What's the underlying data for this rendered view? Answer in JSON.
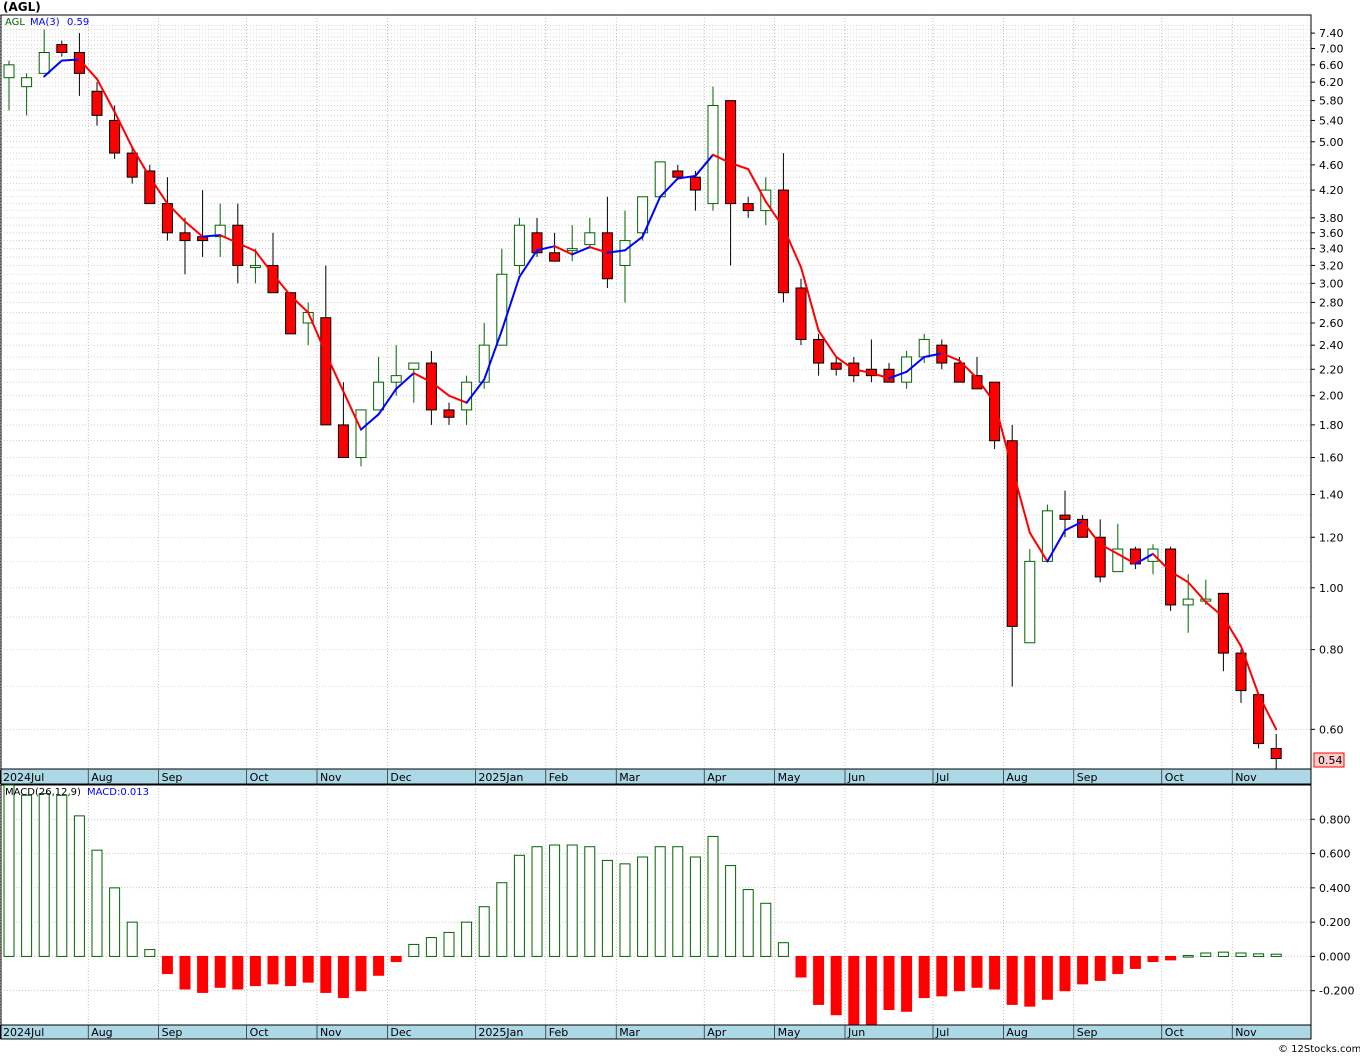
{
  "title": "(AGL)",
  "watermark": "© 12Stocks.com",
  "colors": {
    "up": "#006400",
    "down": "#ff0000",
    "ma_rising": "#0000ff",
    "ma_falling": "#ff0000",
    "axis_band": "#add8e6",
    "last_price_bg": "#ffcccc"
  },
  "chart_data": [
    {
      "type": "candlestick",
      "name": "price",
      "y_scale": "log",
      "ylim": [
        0.52,
        7.9
      ],
      "legend": {
        "symbol": "AGL",
        "ma_label": "MA(3)",
        "ma_value": "0.59"
      },
      "last_price_label": "0.54",
      "y_ticks": [
        "7.40",
        "7.00",
        "6.60",
        "6.20",
        "5.80",
        "5.40",
        "5.00",
        "4.60",
        "4.20",
        "3.80",
        "3.60",
        "3.40",
        "3.20",
        "3.00",
        "2.80",
        "2.60",
        "2.40",
        "2.20",
        "2.00",
        "1.80",
        "1.60",
        "1.40",
        "1.20",
        "1.00",
        "0.80",
        "0.60"
      ],
      "x_labels": [
        {
          "index": 0,
          "text": "2024Jul"
        },
        {
          "index": 5,
          "text": "Aug"
        },
        {
          "index": 9,
          "text": "Sep"
        },
        {
          "index": 14,
          "text": "Oct"
        },
        {
          "index": 18,
          "text": "Nov"
        },
        {
          "index": 22,
          "text": "Dec"
        },
        {
          "index": 27,
          "text": "2025Jan"
        },
        {
          "index": 31,
          "text": "Feb"
        },
        {
          "index": 35,
          "text": "Mar"
        },
        {
          "index": 40,
          "text": "Apr"
        },
        {
          "index": 44,
          "text": "May"
        },
        {
          "index": 48,
          "text": "Jun"
        },
        {
          "index": 53,
          "text": "Jul"
        },
        {
          "index": 57,
          "text": "Aug"
        },
        {
          "index": 61,
          "text": "Sep"
        },
        {
          "index": 66,
          "text": "Oct"
        },
        {
          "index": 70,
          "text": "Nov"
        }
      ],
      "candles": [
        {
          "o": 6.3,
          "h": 6.7,
          "l": 5.6,
          "c": 6.6
        },
        {
          "o": 6.1,
          "h": 6.4,
          "l": 5.5,
          "c": 6.3
        },
        {
          "o": 6.4,
          "h": 7.5,
          "l": 6.4,
          "c": 6.9
        },
        {
          "o": 7.1,
          "h": 7.2,
          "l": 6.8,
          "c": 6.9
        },
        {
          "o": 6.9,
          "h": 7.4,
          "l": 5.9,
          "c": 6.4
        },
        {
          "o": 6.0,
          "h": 6.2,
          "l": 5.3,
          "c": 5.5
        },
        {
          "o": 5.4,
          "h": 5.7,
          "l": 4.7,
          "c": 4.8
        },
        {
          "o": 4.8,
          "h": 4.9,
          "l": 4.3,
          "c": 4.4
        },
        {
          "o": 4.5,
          "h": 4.6,
          "l": 4.0,
          "c": 4.0
        },
        {
          "o": 4.0,
          "h": 4.4,
          "l": 3.5,
          "c": 3.6
        },
        {
          "o": 3.6,
          "h": 3.8,
          "l": 3.1,
          "c": 3.5
        },
        {
          "o": 3.55,
          "h": 4.2,
          "l": 3.3,
          "c": 3.5
        },
        {
          "o": 3.55,
          "h": 4.0,
          "l": 3.3,
          "c": 3.7
        },
        {
          "o": 3.7,
          "h": 4.0,
          "l": 3.0,
          "c": 3.2
        },
        {
          "o": 3.2,
          "h": 3.4,
          "l": 3.0,
          "c": 3.2
        },
        {
          "o": 3.2,
          "h": 3.6,
          "l": 2.9,
          "c": 2.9
        },
        {
          "o": 2.9,
          "h": 2.9,
          "l": 2.5,
          "c": 2.5
        },
        {
          "o": 2.6,
          "h": 2.8,
          "l": 2.4,
          "c": 2.7
        },
        {
          "o": 2.65,
          "h": 3.2,
          "l": 1.8,
          "c": 1.8
        },
        {
          "o": 1.8,
          "h": 2.1,
          "l": 1.6,
          "c": 1.6
        },
        {
          "o": 1.6,
          "h": 1.9,
          "l": 1.55,
          "c": 1.9
        },
        {
          "o": 1.9,
          "h": 2.3,
          "l": 1.9,
          "c": 2.1
        },
        {
          "o": 2.1,
          "h": 2.4,
          "l": 2.0,
          "c": 2.15
        },
        {
          "o": 2.2,
          "h": 2.25,
          "l": 1.95,
          "c": 2.25
        },
        {
          "o": 2.25,
          "h": 2.35,
          "l": 1.8,
          "c": 1.9
        },
        {
          "o": 1.9,
          "h": 1.95,
          "l": 1.8,
          "c": 1.85
        },
        {
          "o": 1.9,
          "h": 2.15,
          "l": 1.8,
          "c": 2.1
        },
        {
          "o": 2.1,
          "h": 2.6,
          "l": 2.05,
          "c": 2.4
        },
        {
          "o": 2.4,
          "h": 3.4,
          "l": 2.4,
          "c": 3.1
        },
        {
          "o": 3.2,
          "h": 3.8,
          "l": 3.1,
          "c": 3.7
        },
        {
          "o": 3.6,
          "h": 3.8,
          "l": 3.3,
          "c": 3.35
        },
        {
          "o": 3.35,
          "h": 3.6,
          "l": 3.25,
          "c": 3.25
        },
        {
          "o": 3.4,
          "h": 3.7,
          "l": 3.25,
          "c": 3.4
        },
        {
          "o": 3.45,
          "h": 3.8,
          "l": 3.4,
          "c": 3.6
        },
        {
          "o": 3.6,
          "h": 4.1,
          "l": 2.95,
          "c": 3.05
        },
        {
          "o": 3.2,
          "h": 3.9,
          "l": 2.8,
          "c": 3.5
        },
        {
          "o": 3.6,
          "h": 4.1,
          "l": 3.5,
          "c": 4.1
        },
        {
          "o": 4.1,
          "h": 4.65,
          "l": 4.1,
          "c": 4.65
        },
        {
          "o": 4.5,
          "h": 4.6,
          "l": 4.4,
          "c": 4.4
        },
        {
          "o": 4.4,
          "h": 4.5,
          "l": 3.9,
          "c": 4.2
        },
        {
          "o": 4.0,
          "h": 6.1,
          "l": 3.9,
          "c": 5.7
        },
        {
          "o": 5.8,
          "h": 5.8,
          "l": 3.2,
          "c": 4.0
        },
        {
          "o": 4.0,
          "h": 4.1,
          "l": 3.8,
          "c": 3.9
        },
        {
          "o": 3.9,
          "h": 4.4,
          "l": 3.7,
          "c": 4.2
        },
        {
          "o": 4.2,
          "h": 4.8,
          "l": 2.8,
          "c": 2.9
        },
        {
          "o": 2.95,
          "h": 3.05,
          "l": 2.4,
          "c": 2.45
        },
        {
          "o": 2.45,
          "h": 2.5,
          "l": 2.15,
          "c": 2.25
        },
        {
          "o": 2.25,
          "h": 2.3,
          "l": 2.15,
          "c": 2.2
        },
        {
          "o": 2.25,
          "h": 2.3,
          "l": 2.1,
          "c": 2.15
        },
        {
          "o": 2.2,
          "h": 2.45,
          "l": 2.1,
          "c": 2.15
        },
        {
          "o": 2.2,
          "h": 2.25,
          "l": 2.1,
          "c": 2.1
        },
        {
          "o": 2.1,
          "h": 2.35,
          "l": 2.05,
          "c": 2.3
        },
        {
          "o": 2.3,
          "h": 2.5,
          "l": 2.25,
          "c": 2.45
        },
        {
          "o": 2.4,
          "h": 2.45,
          "l": 2.2,
          "c": 2.25
        },
        {
          "o": 2.25,
          "h": 2.3,
          "l": 2.1,
          "c": 2.1
        },
        {
          "o": 2.15,
          "h": 2.3,
          "l": 2.05,
          "c": 2.05
        },
        {
          "o": 2.1,
          "h": 2.1,
          "l": 1.65,
          "c": 1.7
        },
        {
          "o": 1.7,
          "h": 1.8,
          "l": 0.7,
          "c": 0.87
        },
        {
          "o": 0.82,
          "h": 1.15,
          "l": 0.82,
          "c": 1.1
        },
        {
          "o": 1.1,
          "h": 1.35,
          "l": 1.1,
          "c": 1.32
        },
        {
          "o": 1.3,
          "h": 1.42,
          "l": 1.2,
          "c": 1.28
        },
        {
          "o": 1.28,
          "h": 1.3,
          "l": 1.2,
          "c": 1.2
        },
        {
          "o": 1.2,
          "h": 1.28,
          "l": 1.02,
          "c": 1.04
        },
        {
          "o": 1.06,
          "h": 1.26,
          "l": 1.06,
          "c": 1.15
        },
        {
          "o": 1.15,
          "h": 1.16,
          "l": 1.07,
          "c": 1.09
        },
        {
          "o": 1.1,
          "h": 1.17,
          "l": 1.05,
          "c": 1.15
        },
        {
          "o": 1.15,
          "h": 1.16,
          "l": 0.92,
          "c": 0.94
        },
        {
          "o": 0.94,
          "h": 1.05,
          "l": 0.85,
          "c": 0.96
        },
        {
          "o": 0.96,
          "h": 1.03,
          "l": 0.94,
          "c": 0.96
        },
        {
          "o": 0.98,
          "h": 0.98,
          "l": 0.74,
          "c": 0.79
        },
        {
          "o": 0.79,
          "h": 0.8,
          "l": 0.66,
          "c": 0.69
        },
        {
          "o": 0.68,
          "h": 0.68,
          "l": 0.56,
          "c": 0.57
        },
        {
          "o": 0.56,
          "h": 0.59,
          "l": 0.52,
          "c": 0.54
        }
      ],
      "ma3": [
        null,
        null,
        6.33,
        6.7,
        6.73,
        6.27,
        5.57,
        4.9,
        4.4,
        4.0,
        3.75,
        3.55,
        3.57,
        3.47,
        3.37,
        3.1,
        2.87,
        2.7,
        2.33,
        2.03,
        1.77,
        1.87,
        2.05,
        2.17,
        2.1,
        2.0,
        1.95,
        2.12,
        2.53,
        3.07,
        3.38,
        3.43,
        3.33,
        3.42,
        3.35,
        3.38,
        3.55,
        4.1,
        4.38,
        4.42,
        4.77,
        4.63,
        4.53,
        4.03,
        3.67,
        3.18,
        2.53,
        2.3,
        2.2,
        2.17,
        2.13,
        2.18,
        2.3,
        2.33,
        2.27,
        2.13,
        1.95,
        1.54,
        1.22,
        1.1,
        1.23,
        1.27,
        1.17,
        1.13,
        1.09,
        1.13,
        1.06,
        1.02,
        0.95,
        0.9,
        0.81,
        0.68,
        0.6
      ]
    },
    {
      "type": "bar",
      "name": "macd",
      "legend": {
        "label": "MACD(26,12,9)",
        "value_label": "MACD:0.013"
      },
      "ylim": [
        -0.4,
        1.0
      ],
      "y_ticks": [
        "0.800",
        "0.600",
        "0.400",
        "0.200",
        "0.000",
        "-0.200"
      ],
      "values": [
        1.0,
        0.94,
        0.95,
        0.94,
        0.82,
        0.62,
        0.4,
        0.2,
        0.04,
        -0.1,
        -0.19,
        -0.21,
        -0.18,
        -0.19,
        -0.17,
        -0.16,
        -0.17,
        -0.15,
        -0.21,
        -0.24,
        -0.2,
        -0.11,
        -0.03,
        0.07,
        0.11,
        0.14,
        0.2,
        0.29,
        0.43,
        0.59,
        0.64,
        0.65,
        0.65,
        0.64,
        0.56,
        0.54,
        0.58,
        0.64,
        0.64,
        0.58,
        0.7,
        0.53,
        0.39,
        0.31,
        0.08,
        -0.12,
        -0.28,
        -0.34,
        -0.4,
        -0.4,
        -0.31,
        -0.32,
        -0.24,
        -0.23,
        -0.2,
        -0.18,
        -0.19,
        -0.28,
        -0.29,
        -0.25,
        -0.2,
        -0.16,
        -0.14,
        -0.1,
        -0.07,
        -0.03,
        -0.02,
        0.005,
        0.02,
        0.025,
        0.02,
        0.015,
        0.013
      ]
    }
  ]
}
